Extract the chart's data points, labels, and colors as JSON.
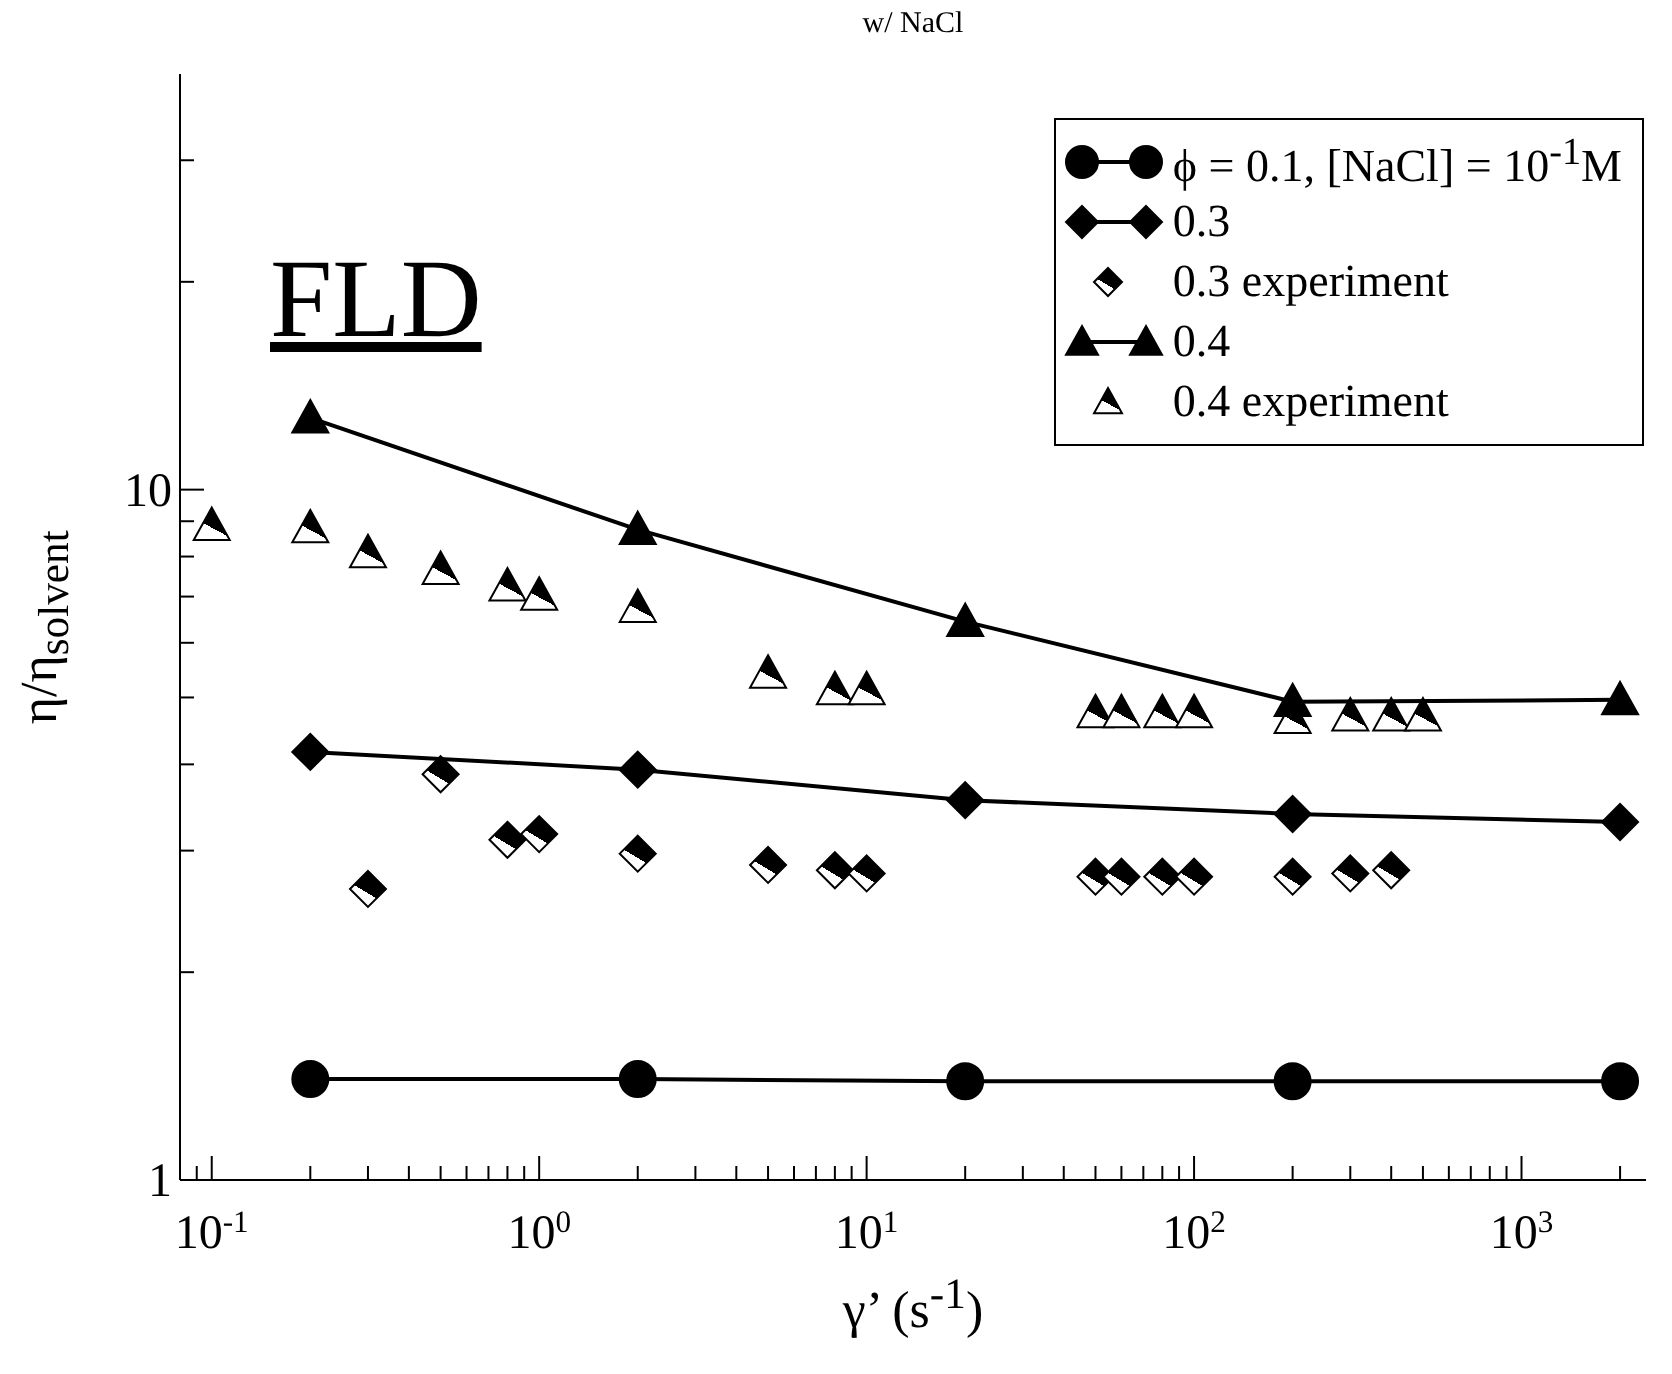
{
  "chart_data": {
    "type": "line",
    "title": "w/ NaCl",
    "xlabel": "γ’ (s$^{-1}$)",
    "ylabel": "η/η$_{solvent}$",
    "annotations": [
      "FLD"
    ],
    "log": "xy",
    "grid": false,
    "legend": "top right",
    "xlim": [
      0.08,
      2400
    ],
    "ylim": [
      1,
      40
    ],
    "xticks": [
      {
        "value": 0.09,
        "label": null
      },
      {
        "value": 0.1,
        "label": "10$^{-1}$"
      },
      {
        "value": 0.2,
        "label": null
      },
      {
        "value": 0.3,
        "label": null
      },
      {
        "value": 0.4,
        "label": null
      },
      {
        "value": 0.5,
        "label": null
      },
      {
        "value": 0.6,
        "label": null
      },
      {
        "value": 0.7,
        "label": null
      },
      {
        "value": 0.8,
        "label": null
      },
      {
        "value": 0.9,
        "label": null
      },
      {
        "value": 1,
        "label": "10$^{0}$"
      },
      {
        "value": 2,
        "label": null
      },
      {
        "value": 3,
        "label": null
      },
      {
        "value": 4,
        "label": null
      },
      {
        "value": 5,
        "label": null
      },
      {
        "value": 6,
        "label": null
      },
      {
        "value": 7,
        "label": null
      },
      {
        "value": 8,
        "label": null
      },
      {
        "value": 9,
        "label": null
      },
      {
        "value": 10,
        "label": "10$^{1}$"
      },
      {
        "value": 20,
        "label": null
      },
      {
        "value": 30,
        "label": null
      },
      {
        "value": 40,
        "label": null
      },
      {
        "value": 50,
        "label": null
      },
      {
        "value": 60,
        "label": null
      },
      {
        "value": 70,
        "label": null
      },
      {
        "value": 80,
        "label": null
      },
      {
        "value": 90,
        "label": null
      },
      {
        "value": 100,
        "label": "10$^{2}$"
      },
      {
        "value": 200,
        "label": null
      },
      {
        "value": 300,
        "label": null
      },
      {
        "value": 400,
        "label": null
      },
      {
        "value": 500,
        "label": null
      },
      {
        "value": 600,
        "label": null
      },
      {
        "value": 700,
        "label": null
      },
      {
        "value": 800,
        "label": null
      },
      {
        "value": 900,
        "label": null
      },
      {
        "value": 1000,
        "label": "10$^{3}$"
      },
      {
        "value": 2000,
        "label": null
      }
    ],
    "yticks": [
      1,
      {
        "value": 2,
        "label": null
      },
      {
        "value": 3,
        "label": null
      },
      {
        "value": 4,
        "label": null
      },
      {
        "value": 5,
        "label": null
      },
      {
        "value": 6,
        "label": null
      },
      {
        "value": 7,
        "label": null
      },
      {
        "value": 8,
        "label": null
      },
      {
        "value": 9,
        "label": null
      },
      10,
      {
        "value": 20,
        "label": null
      },
      {
        "value": 30,
        "label": null
      }
    ],
    "series": [
      {
        "name": "ϕ = 0.1, [NaCl] = 10$^{-1}$M",
        "marker": "circle",
        "color": "#000000",
        "x": [
          0.2,
          2,
          20,
          200,
          2000
        ],
        "values": [
          1.4,
          1.4,
          1.39,
          1.39,
          1.39
        ]
      },
      {
        "name": "0.3",
        "marker": "diamond",
        "color": "#000000",
        "x": [
          0.2,
          2,
          20,
          200,
          2000
        ],
        "values": [
          4.17,
          3.93,
          3.55,
          3.39,
          3.3
        ]
      },
      {
        "name": "0.3 experiment",
        "type": "scatter",
        "marker": "diamond",
        "color": "#000000",
        "x": [
          0.3,
          0.5,
          0.8,
          1,
          2,
          5,
          8,
          10,
          50,
          60,
          80,
          100,
          200,
          300,
          400
        ],
        "values": [
          2.64,
          3.87,
          3.11,
          3.17,
          2.97,
          2.86,
          2.81,
          2.78,
          2.75,
          2.75,
          2.75,
          2.75,
          2.75,
          2.78,
          2.81
        ]
      },
      {
        "name": "0.4",
        "marker": "triangle",
        "color": "#000000",
        "x": [
          0.2,
          2,
          20,
          200,
          2000
        ],
        "values": [
          12.7,
          8.75,
          6.44,
          4.93,
          4.96
        ]
      },
      {
        "name": "0.4 experiment",
        "type": "scatter",
        "marker": "triangle",
        "color": "#000000",
        "x": [
          0.1,
          0.2,
          0.3,
          0.5,
          0.8,
          1,
          2,
          5,
          8,
          10,
          50,
          60,
          80,
          100,
          200,
          300,
          400,
          500
        ],
        "values": [
          8.87,
          8.8,
          8.1,
          7.66,
          7.25,
          7.03,
          6.75,
          5.42,
          5.13,
          5.13,
          4.75,
          4.75,
          4.75,
          4.75,
          4.66,
          4.7,
          4.7,
          4.7
        ]
      }
    ]
  }
}
